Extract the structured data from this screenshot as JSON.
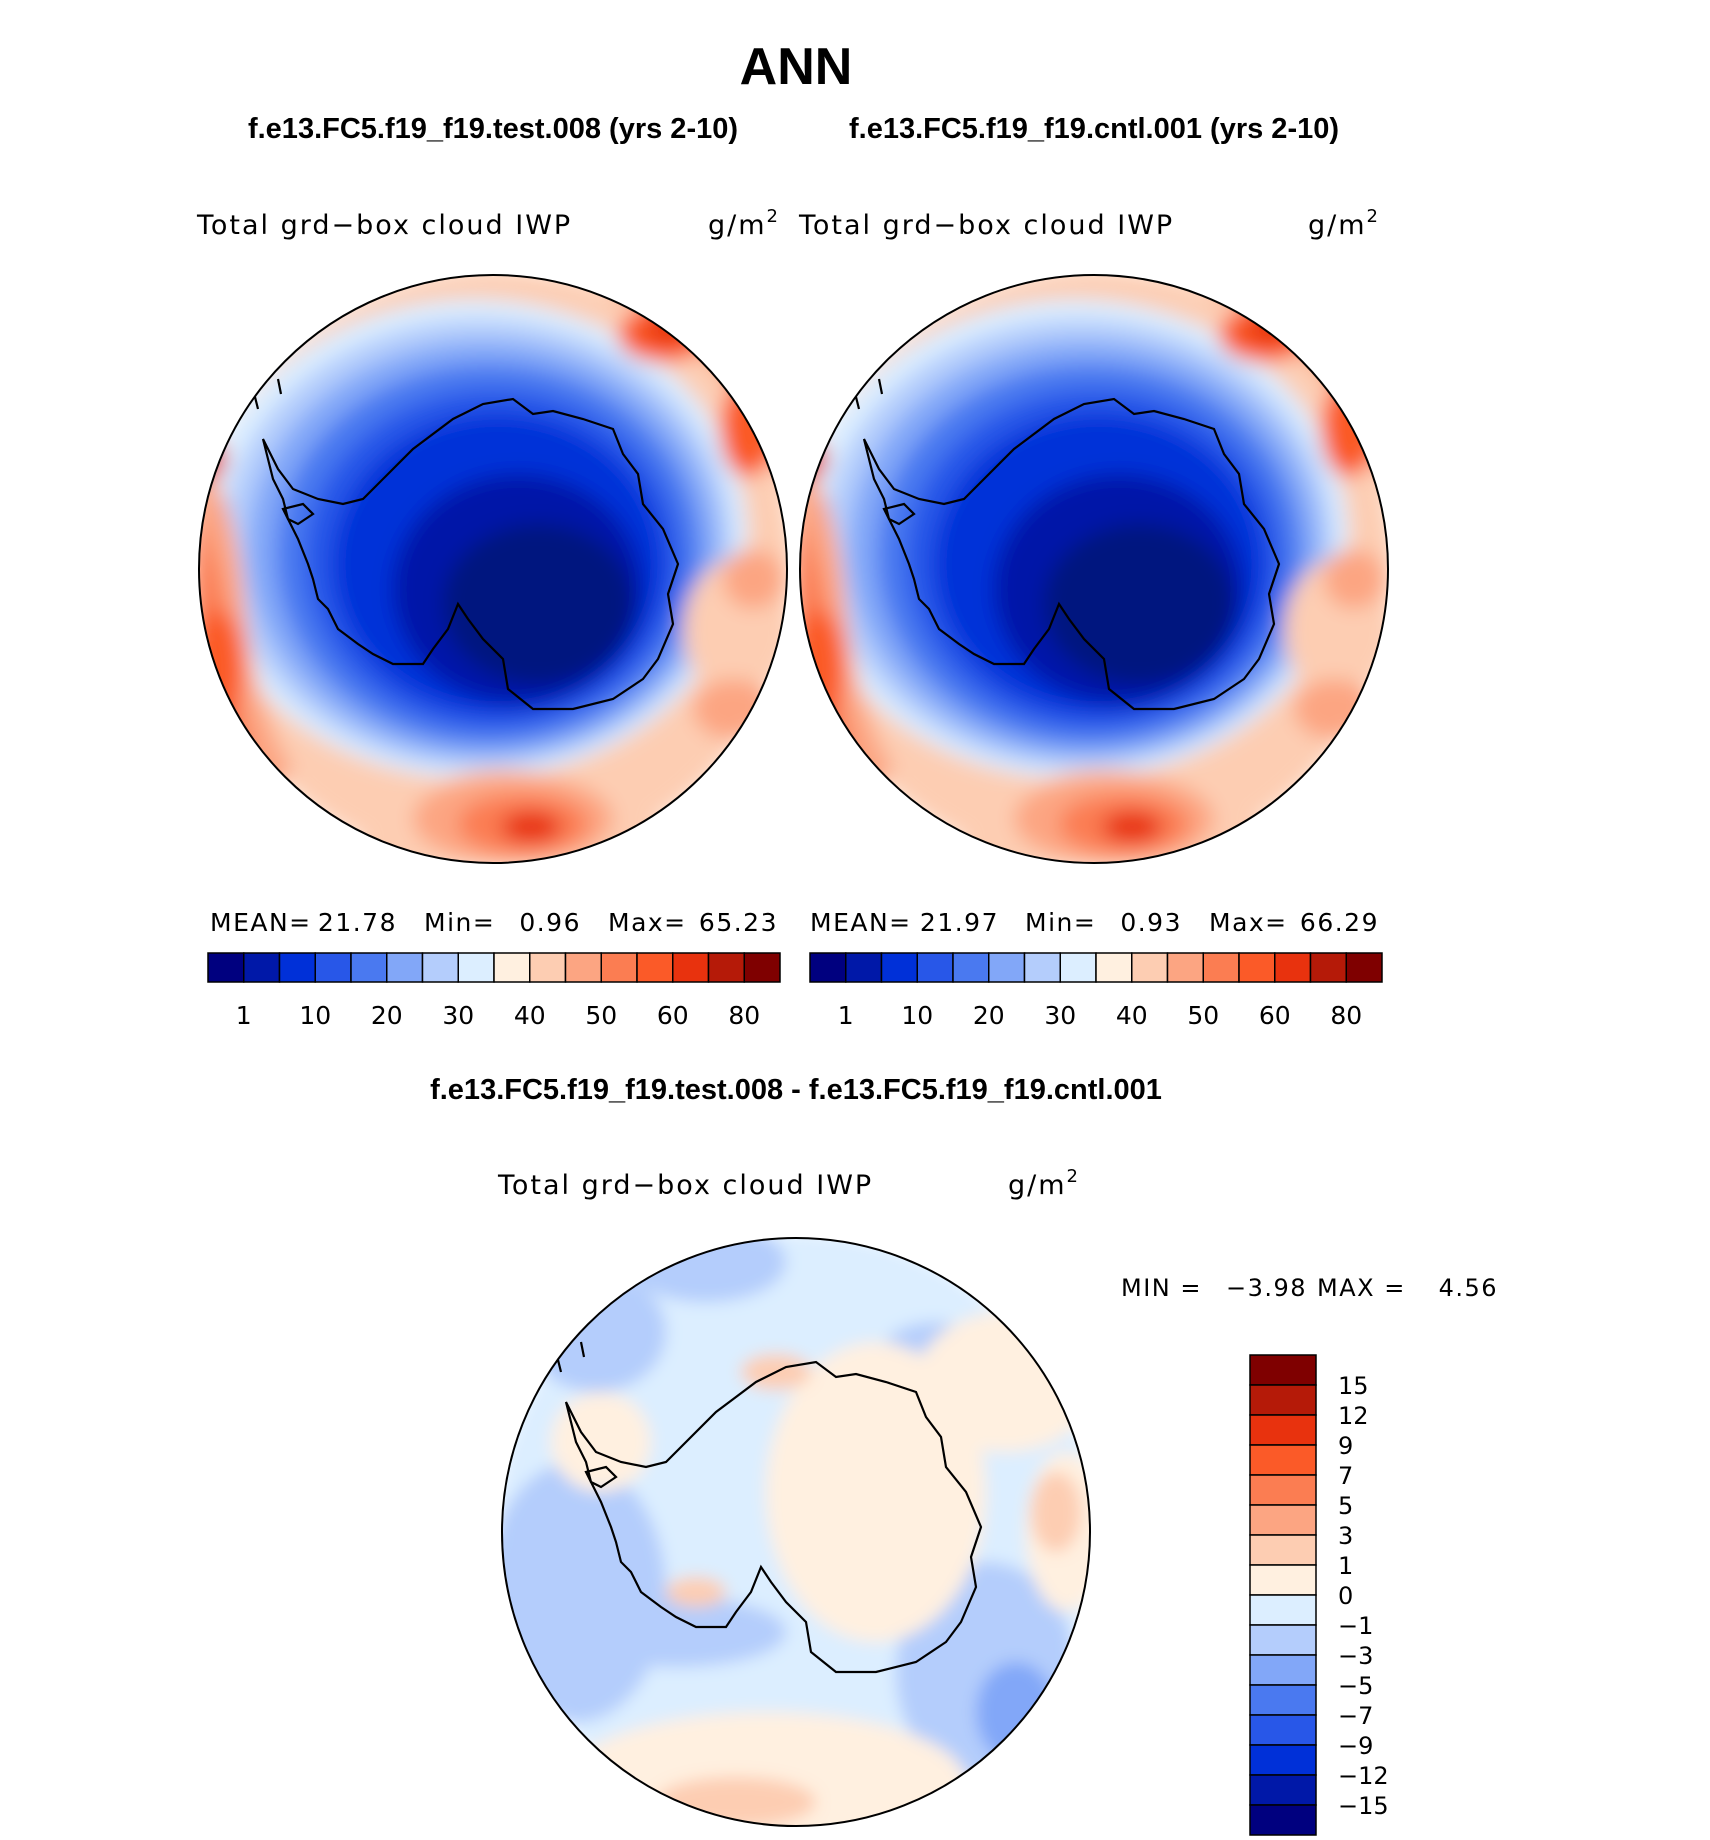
{
  "header": {
    "season": "ANN",
    "test_case": "f.e13.FC5.f19_f19.test.008 (yrs 2-10)",
    "control_case": "f.e13.FC5.f19_f19.cntl.001 (yrs 2-10)",
    "diff_title": "f.e13.FC5.f19_f19.test.008 - f.e13.FC5.f19_f19.cntl.001"
  },
  "variable": {
    "long_name": "Total grd−box cloud IWP",
    "units_base": "g/m",
    "units_exp": "2"
  },
  "stats": {
    "mean_label": "MEAN=",
    "min_label": "Min=",
    "max_label": "Max=",
    "test": {
      "mean": "21.78",
      "min": "0.96",
      "max": "65.23"
    },
    "control": {
      "mean": "21.97",
      "min": "0.93",
      "max": "66.29"
    },
    "diff": {
      "min_label": "MIN =",
      "min": "−3.98",
      "max_label": "MAX =",
      "max": "4.56"
    }
  },
  "colors": {
    "abs_scale": [
      "#00007f",
      "#0018a8",
      "#0030d8",
      "#2857e8",
      "#4a79f0",
      "#82a7f8",
      "#b4cdfc",
      "#dceeff",
      "#fff0e0",
      "#fdcdb2",
      "#fca582",
      "#fb7d52",
      "#fb5a28",
      "#e8320e",
      "#b51a08",
      "#7f0000"
    ],
    "diff_scale": [
      "#00007f",
      "#0018a8",
      "#0030d8",
      "#2857e8",
      "#4a79f0",
      "#82a7f8",
      "#b4cdfc",
      "#dceeff",
      "#fff0e0",
      "#fdcdb2",
      "#fca582",
      "#fb7d52",
      "#fb5a28",
      "#e8320e",
      "#b51a08",
      "#7f0000"
    ]
  },
  "chart_data": [
    {
      "type": "heatmap",
      "projection": "south-polar-stereographic",
      "panel": "test",
      "title": "Total grd−box cloud IWP",
      "units": "g/m^2",
      "mean": 21.78,
      "min": 0.96,
      "max": 65.23,
      "contour_levels": [
        1,
        5,
        10,
        15,
        20,
        25,
        30,
        35,
        40,
        45,
        50,
        55,
        60,
        70,
        80
      ],
      "colorbar_labels": [
        "1",
        "10",
        "20",
        "30",
        "40",
        "50",
        "60",
        "80"
      ]
    },
    {
      "type": "heatmap",
      "projection": "south-polar-stereographic",
      "panel": "control",
      "title": "Total grd−box cloud IWP",
      "units": "g/m^2",
      "mean": 21.97,
      "min": 0.93,
      "max": 66.29,
      "contour_levels": [
        1,
        5,
        10,
        15,
        20,
        25,
        30,
        35,
        40,
        45,
        50,
        55,
        60,
        70,
        80
      ],
      "colorbar_labels": [
        "1",
        "10",
        "20",
        "30",
        "40",
        "50",
        "60",
        "80"
      ]
    },
    {
      "type": "heatmap",
      "projection": "south-polar-stereographic",
      "panel": "difference",
      "title": "Total grd−box cloud IWP",
      "units": "g/m^2",
      "min": -3.98,
      "max": 4.56,
      "contour_levels": [
        -15,
        -12,
        -9,
        -7,
        -5,
        -3,
        -1,
        0,
        1,
        3,
        5,
        7,
        9,
        12,
        15
      ],
      "colorbar_labels": [
        "15",
        "12",
        "9",
        "7",
        "5",
        "3",
        "1",
        "0",
        "−1",
        "−3",
        "−5",
        "−7",
        "−9",
        "−12",
        "−15"
      ]
    }
  ]
}
